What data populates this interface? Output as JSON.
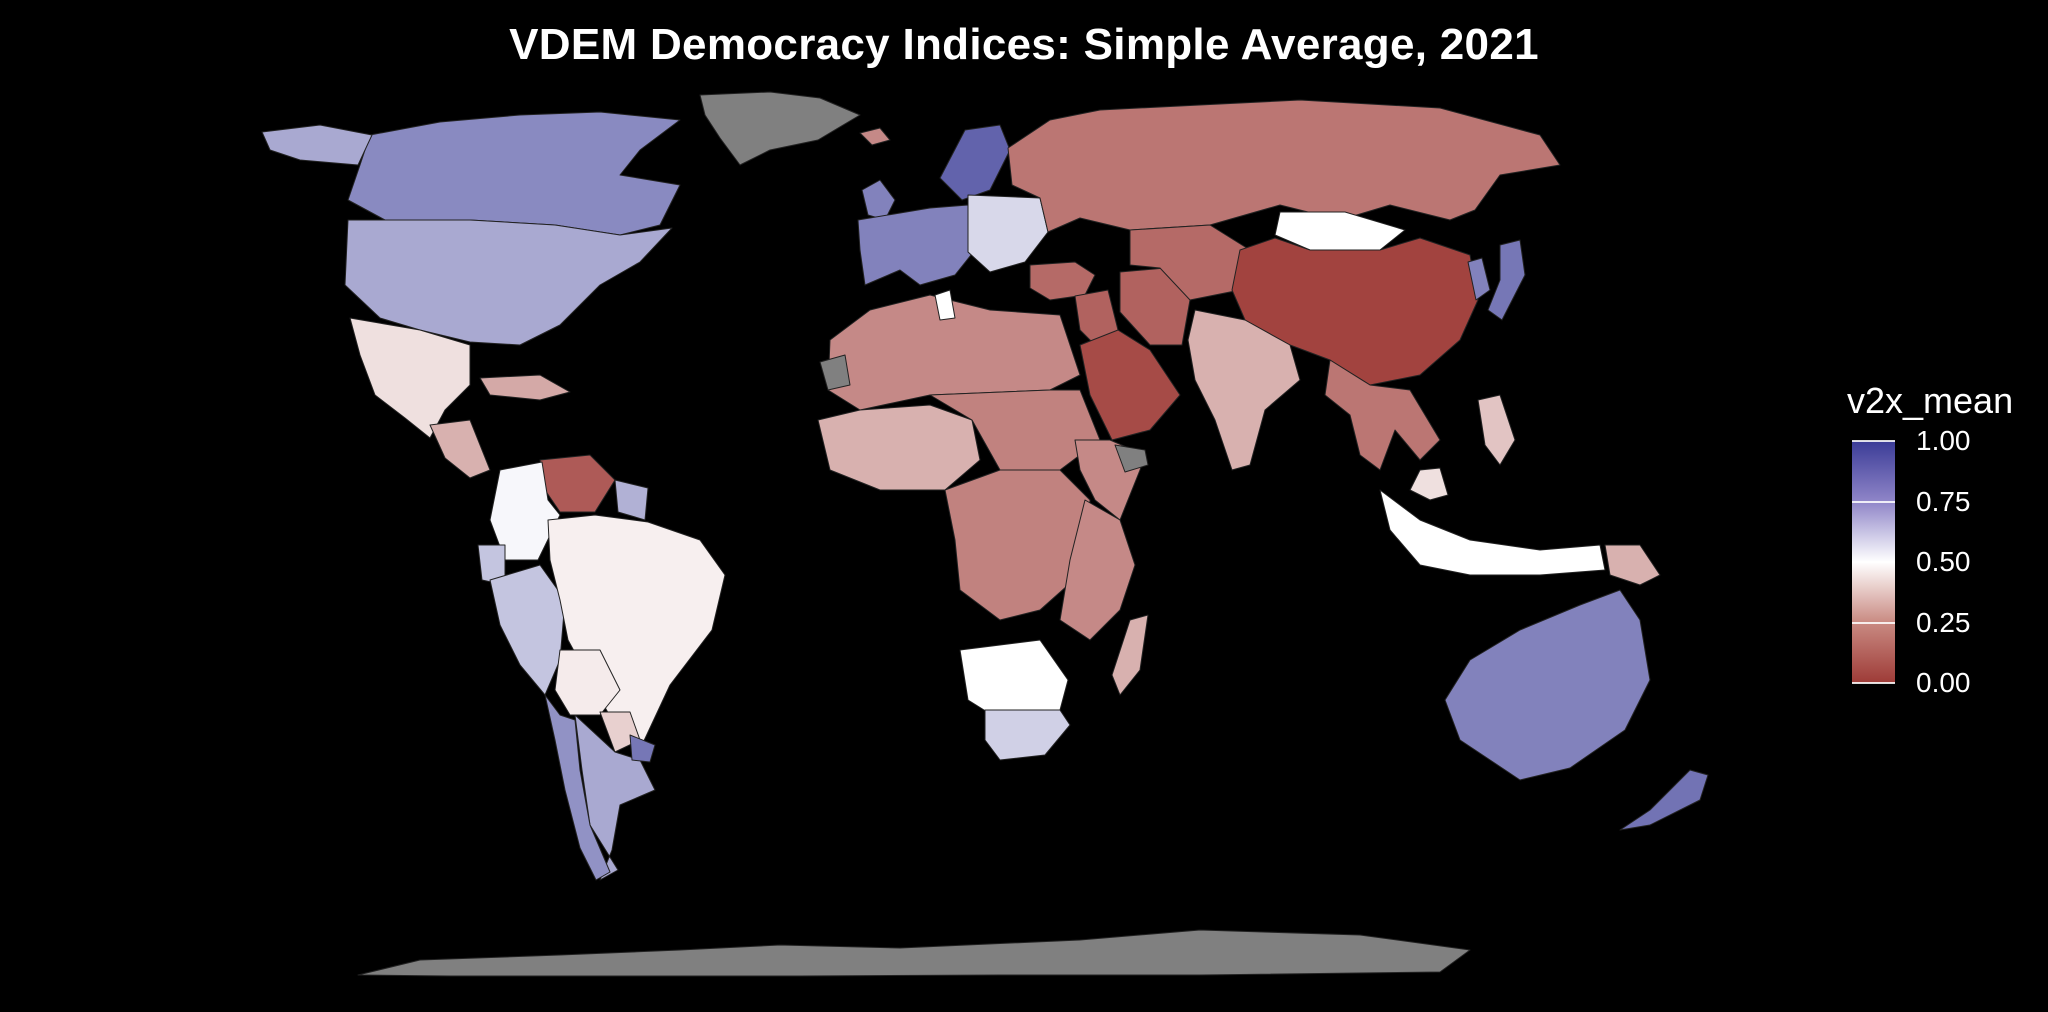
{
  "title": "VDEM Democracy Indices: Simple Average, 2021",
  "legend": {
    "title": "v2x_mean",
    "ticks": [
      "1.00",
      "0.75",
      "0.50",
      "0.25",
      "0.00"
    ],
    "tick_values": [
      1.0,
      0.75,
      0.5,
      0.25,
      0.0
    ],
    "range": [
      0,
      1
    ],
    "position": "right"
  },
  "colors": {
    "background": "#000000",
    "high": "#3b3c97",
    "mid": "#ffffff",
    "low": "#9e3b37",
    "no_data": "#808080",
    "border": "#222222"
  },
  "map": {
    "projection": "equirectangular",
    "regions": [
      {
        "name": "greenland",
        "value": null
      },
      {
        "name": "canada",
        "value": 0.8
      },
      {
        "name": "alaska",
        "value": 0.72
      },
      {
        "name": "usa",
        "value": 0.72
      },
      {
        "name": "mexico",
        "value": 0.42
      },
      {
        "name": "central-america",
        "value": 0.3
      },
      {
        "name": "caribbean",
        "value": 0.28
      },
      {
        "name": "venezuela",
        "value": 0.08
      },
      {
        "name": "colombia",
        "value": 0.52
      },
      {
        "name": "guianas",
        "value": 0.7
      },
      {
        "name": "ecuador",
        "value": 0.65
      },
      {
        "name": "peru",
        "value": 0.65
      },
      {
        "name": "brazil",
        "value": 0.46
      },
      {
        "name": "bolivia",
        "value": 0.45
      },
      {
        "name": "paraguay",
        "value": 0.38
      },
      {
        "name": "argentina",
        "value": 0.72
      },
      {
        "name": "chile",
        "value": 0.78
      },
      {
        "name": "uruguay",
        "value": 0.85
      },
      {
        "name": "iceland",
        "value": 0.2
      },
      {
        "name": "scandinavia",
        "value": 0.9
      },
      {
        "name": "western-europe",
        "value": 0.82
      },
      {
        "name": "uk-ireland",
        "value": 0.82
      },
      {
        "name": "eastern-europe",
        "value": 0.6
      },
      {
        "name": "russia",
        "value": 0.15
      },
      {
        "name": "turkey",
        "value": 0.12
      },
      {
        "name": "middle-east",
        "value": 0.1
      },
      {
        "name": "arabian-peninsula",
        "value": 0.04
      },
      {
        "name": "iran",
        "value": 0.1
      },
      {
        "name": "central-asia",
        "value": 0.12
      },
      {
        "name": "mongolia",
        "value": 0.5
      },
      {
        "name": "china",
        "value": 0.02
      },
      {
        "name": "india",
        "value": 0.3
      },
      {
        "name": "southeast-asia",
        "value": 0.15
      },
      {
        "name": "japan",
        "value": 0.85
      },
      {
        "name": "korea",
        "value": 0.82
      },
      {
        "name": "philippines",
        "value": 0.35
      },
      {
        "name": "indonesia",
        "value": 0.5
      },
      {
        "name": "malaysia",
        "value": 0.42
      },
      {
        "name": "papua-new-guinea",
        "value": 0.3
      },
      {
        "name": "australia",
        "value": 0.82
      },
      {
        "name": "new-zealand",
        "value": 0.86
      },
      {
        "name": "north-africa",
        "value": 0.2
      },
      {
        "name": "tunisia",
        "value": 0.5
      },
      {
        "name": "west-africa",
        "value": 0.3
      },
      {
        "name": "sahel",
        "value": 0.18
      },
      {
        "name": "central-africa",
        "value": 0.18
      },
      {
        "name": "east-africa",
        "value": 0.2
      },
      {
        "name": "horn-of-africa",
        "value": 0.2
      },
      {
        "name": "somaliland",
        "value": null
      },
      {
        "name": "western-sahara",
        "value": null
      },
      {
        "name": "southern-africa",
        "value": 0.5
      },
      {
        "name": "south-africa",
        "value": 0.62
      },
      {
        "name": "madagascar",
        "value": 0.3
      },
      {
        "name": "antarctica",
        "value": null
      }
    ]
  }
}
